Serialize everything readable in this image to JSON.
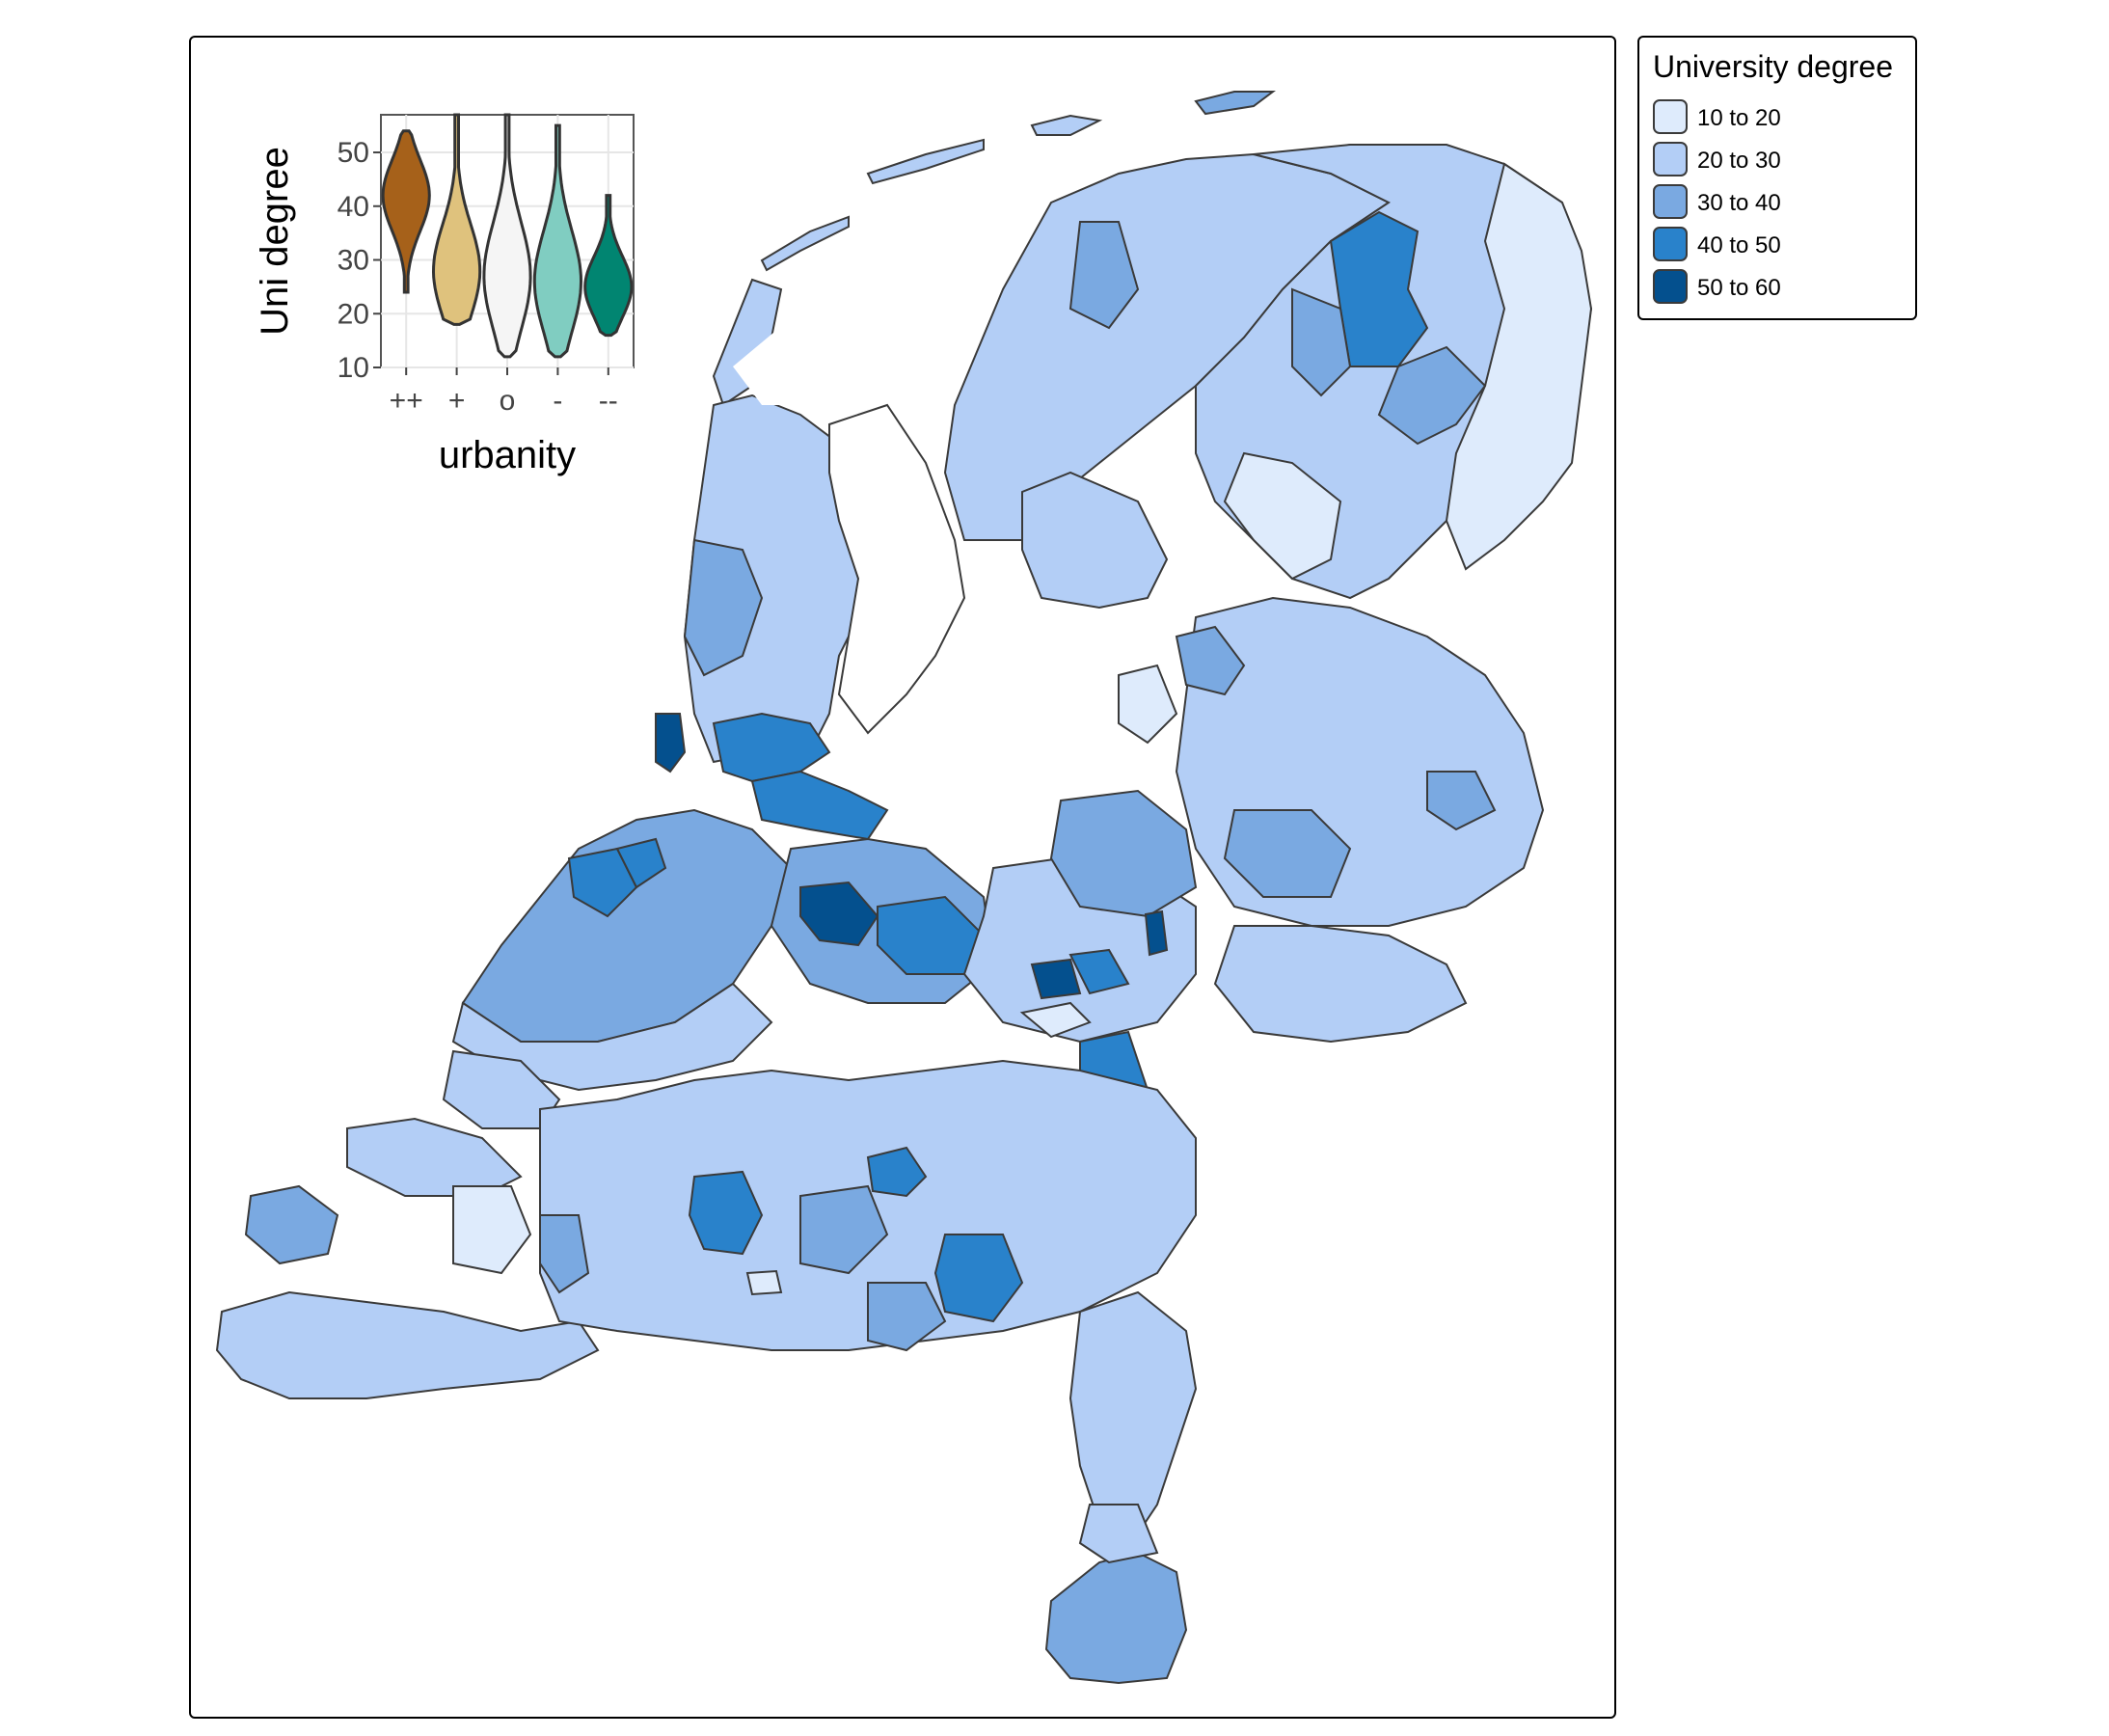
{
  "legend": {
    "title": "University degree",
    "classes": [
      {
        "label": "10 to 20",
        "color": "#DEEBFC"
      },
      {
        "label": "20 to 30",
        "color": "#B3CEF6"
      },
      {
        "label": "30 to 40",
        "color": "#7AA9E1"
      },
      {
        "label": "40 to 50",
        "color": "#2982CB"
      },
      {
        "label": "50 to 60",
        "color": "#04508E"
      }
    ]
  },
  "inset": {
    "chart_data": {
      "type": "violin",
      "ylabel": "Uni degree",
      "xlabel": "urbanity",
      "ylim": [
        10,
        57
      ],
      "yticks": [
        10,
        20,
        30,
        40,
        50
      ],
      "categories": [
        "++",
        "+",
        "o",
        "-",
        "--"
      ],
      "series": [
        {
          "category": "++",
          "color": "#A6611A",
          "min": 24,
          "max": 54,
          "peak": 42
        },
        {
          "category": "+",
          "color": "#DFC27D",
          "min": 18,
          "max": 57,
          "peak": 28
        },
        {
          "category": "o",
          "color": "#F5F5F5",
          "min": 12,
          "max": 57,
          "peak": 27
        },
        {
          "category": "-",
          "color": "#80CDC1",
          "min": 12,
          "max": 55,
          "peak": 26
        },
        {
          "category": "--",
          "color": "#018571",
          "min": 16,
          "max": 42,
          "peak": 25
        }
      ]
    }
  }
}
